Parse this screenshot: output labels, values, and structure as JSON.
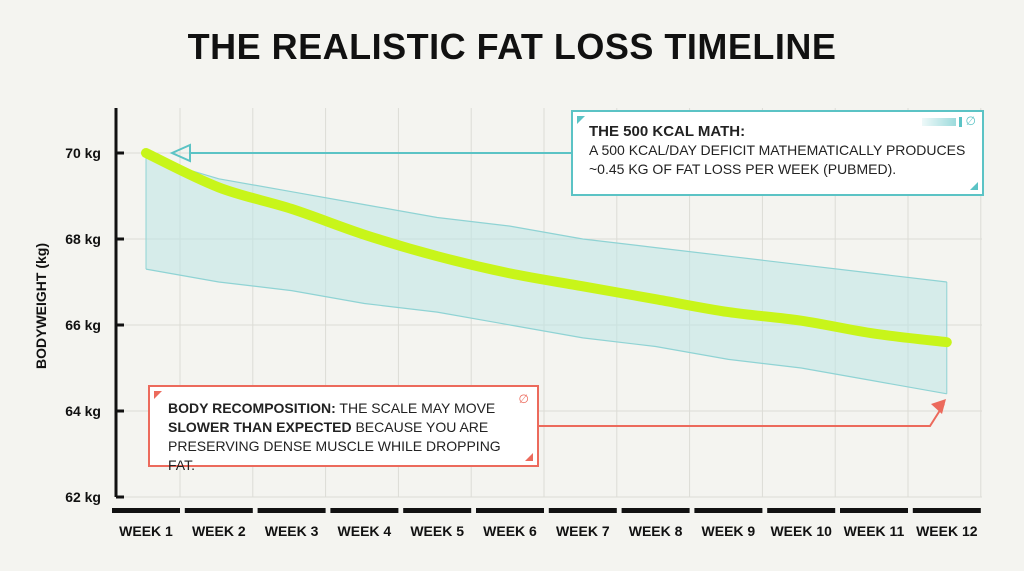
{
  "title": "THE REALISTIC FAT LOSS TIMELINE",
  "chart_data": {
    "type": "line",
    "categories": [
      "WEEK 1",
      "WEEK 2",
      "WEEK 3",
      "WEEK 4",
      "WEEK 5",
      "WEEK 6",
      "WEEK 7",
      "WEEK 8",
      "WEEK 9",
      "WEEK 10",
      "WEEK 11",
      "WEEK 12"
    ],
    "ylabel": "BODYWEIGHT (kg)",
    "ylim": [
      62,
      71
    ],
    "yticks": [
      62,
      64,
      66,
      68,
      70
    ],
    "ytick_labels": [
      "62 kg",
      "64 kg",
      "66 kg",
      "68 kg",
      "70 kg"
    ],
    "series": [
      {
        "values": [
          70.0,
          69.2,
          68.7,
          68.1,
          67.6,
          67.2,
          66.9,
          66.6,
          66.3,
          66.1,
          65.8,
          65.6
        ]
      }
    ],
    "band": {
      "upper": [
        69.9,
        69.4,
        69.1,
        68.8,
        68.5,
        68.3,
        68.0,
        67.8,
        67.6,
        67.4,
        67.2,
        67.0
      ],
      "lower": [
        67.3,
        67.0,
        66.8,
        66.5,
        66.3,
        66.0,
        65.7,
        65.5,
        65.2,
        65.0,
        64.7,
        64.4
      ]
    },
    "grid": true,
    "colors": {
      "line": "#c8f51a",
      "band": "#bde6e6",
      "band_edge": "#8fd3d4",
      "axis": "#111111",
      "grid": "#dcdcd6",
      "teal": "#5bc3c5",
      "red": "#ec6a5c"
    }
  },
  "callouts": {
    "math": {
      "heading": "THE 500 KCAL MATH:",
      "text": "A 500 KCAL/DAY DEFICIT MATHEMATICALLY PRODUCES ~0.45 KG OF FAT LOSS PER WEEK (PUBMED)."
    },
    "recomp": {
      "heading": "BODY RECOMPOSITION:",
      "text_a": " THE SCALE MAY MOVE ",
      "strong": "SLOWER THAN EXPECTED",
      "text_b": " BECAUSE YOU ARE PRESERVING DENSE MUSCLE WHILE DROPPING FAT."
    }
  }
}
